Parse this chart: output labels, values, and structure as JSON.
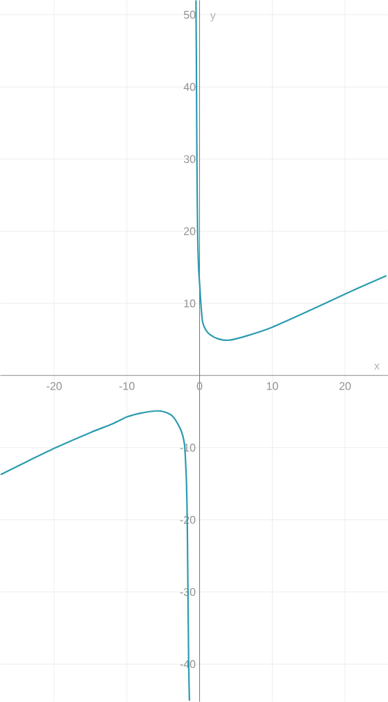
{
  "chart_data": {
    "type": "line",
    "xlabel": "x",
    "ylabel": "y",
    "xlim": [
      -27.4,
      25.9
    ],
    "ylim": [
      -45.2,
      52
    ],
    "xticks": [
      -20,
      -10,
      0,
      10,
      20
    ],
    "yticks": [
      -40,
      -30,
      -20,
      -10,
      10,
      20,
      30,
      40,
      50
    ],
    "grid": true,
    "line_style": "solid",
    "series": [
      {
        "color": "#2a9bb0",
        "x": [
          -27.3,
          -23.5,
          -19.8,
          -15,
          -12,
          -9.9,
          -8,
          -6,
          -5,
          -4,
          -3.5,
          -3,
          -2.6,
          -2.3,
          -2.1,
          -2,
          -1.9,
          -1.8,
          -1.7,
          -1.6,
          -1.5,
          -1.4
        ],
        "values": [
          -13.7,
          -11.8,
          -10.0,
          -7.9,
          -6.7,
          -5.7,
          -5.2,
          -4.9,
          -5.0,
          -5.4,
          -5.9,
          -6.7,
          -7.5,
          -8.4,
          -9.4,
          -10.5,
          -12.5,
          -15,
          -20,
          -30,
          -40,
          -45
        ]
      },
      {
        "color": "#2a9bb0",
        "x": [
          -0.5,
          -0.45,
          -0.37,
          -0.27,
          -0.14,
          0.05,
          0.17,
          0.4,
          0.8,
          1.4,
          2.5,
          4.1,
          6.5,
          10,
          14.9,
          20,
          25.6
        ],
        "values": [
          52,
          45,
          30,
          20,
          15,
          12,
          10,
          7.5,
          6.4,
          5.7,
          5.1,
          4.9,
          5.5,
          6.7,
          8.9,
          11.3,
          13.8
        ]
      }
    ]
  }
}
